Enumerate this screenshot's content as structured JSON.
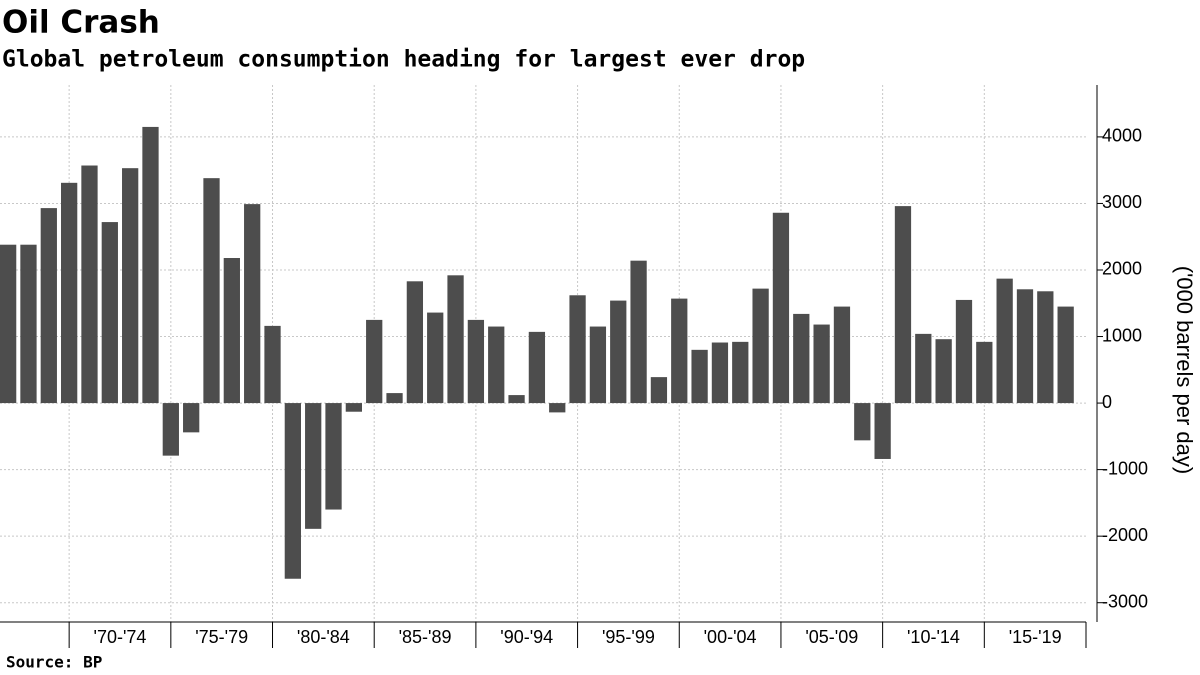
{
  "chart_data": {
    "type": "bar",
    "title": "Oil Crash",
    "subtitle": "Global petroleum consumption heading for largest ever drop",
    "source": "Source: BP",
    "y_label": "('000 barrels per day)",
    "x": [
      1967,
      1968,
      1969,
      1970,
      1971,
      1972,
      1973,
      1974,
      1975,
      1976,
      1977,
      1978,
      1979,
      1980,
      1981,
      1982,
      1983,
      1984,
      1985,
      1986,
      1987,
      1988,
      1989,
      1990,
      1991,
      1992,
      1993,
      1994,
      1995,
      1996,
      1997,
      1998,
      1999,
      2000,
      2001,
      2002,
      2003,
      2004,
      2005,
      2006,
      2007,
      2008,
      2009,
      2010,
      2011,
      2012,
      2013,
      2014,
      2015,
      2016,
      2017,
      2018,
      2019
    ],
    "values": [
      2380,
      2380,
      2930,
      3310,
      3570,
      2720,
      3530,
      4150,
      -790,
      -440,
      3380,
      2180,
      2990,
      1160,
      -2640,
      -1890,
      -1600,
      -130,
      1250,
      150,
      1830,
      1360,
      1920,
      1250,
      1150,
      120,
      1070,
      -140,
      1620,
      1150,
      1540,
      2140,
      390,
      1570,
      800,
      910,
      920,
      1720,
      2860,
      1340,
      1180,
      1450,
      -560,
      -840,
      2960,
      1040,
      960,
      1550,
      920,
      1870,
      1710,
      1680,
      1450
    ],
    "color": "#4d4d4d",
    "xlim": [
      1966.6,
      2020
    ],
    "xticks": [
      {
        "value": 1970,
        "label": "'70-'74"
      },
      {
        "value": 1975,
        "label": "'75-'79"
      },
      {
        "value": 1980,
        "label": "'80-'84"
      },
      {
        "value": 1985,
        "label": "'85-'89"
      },
      {
        "value": 1990,
        "label": "'90-'94"
      },
      {
        "value": 1995,
        "label": "'95-'99"
      },
      {
        "value": 2000,
        "label": "'00-'04"
      },
      {
        "value": 2005,
        "label": "'05-'09"
      },
      {
        "value": 2010,
        "label": "'10-'14"
      },
      {
        "value": 2015,
        "label": "'15-'19"
      }
    ],
    "ylim": [
      -3290,
      4780
    ],
    "yticks": [
      -3000,
      -2000,
      -1000,
      0,
      1000,
      2000,
      3000,
      4000
    ],
    "grid": true
  }
}
